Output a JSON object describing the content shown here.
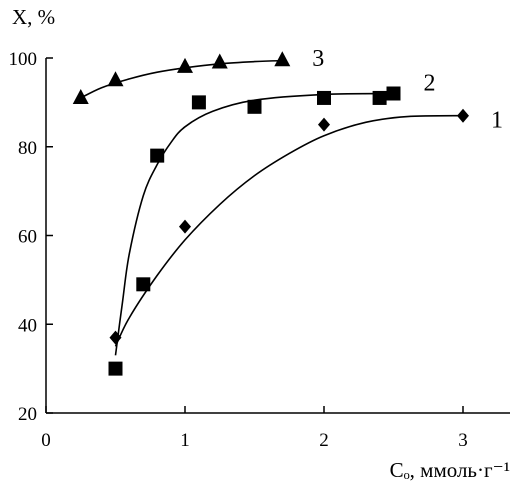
{
  "chart_data": {
    "type": "scatter",
    "ylabel": "X, %",
    "xlabel": "Cₒ, ммоль·г⁻¹",
    "xlim": [
      0,
      3.4
    ],
    "ylim": [
      20,
      100
    ],
    "x_ticks": [
      {
        "value": 0,
        "label": "0"
      },
      {
        "value": 1,
        "label": "1"
      },
      {
        "value": 2,
        "label": "2"
      },
      {
        "value": 3,
        "label": "3"
      }
    ],
    "y_ticks": [
      {
        "value": 20,
        "label": "20"
      },
      {
        "value": 40,
        "label": "40"
      },
      {
        "value": 60,
        "label": "60"
      },
      {
        "value": 80,
        "label": "80"
      },
      {
        "value": 100,
        "label": "100"
      }
    ],
    "grid": false,
    "series": [
      {
        "label": "1",
        "marker": "diamond",
        "x": [
          0.5,
          1.0,
          2.0,
          3.0
        ],
        "y": [
          37,
          62,
          85,
          87
        ],
        "curve": [
          [
            0.5,
            35
          ],
          [
            0.6,
            41.5
          ],
          [
            0.8,
            51
          ],
          [
            1.0,
            59
          ],
          [
            1.25,
            67
          ],
          [
            1.5,
            73.5
          ],
          [
            1.75,
            78.5
          ],
          [
            2.0,
            82.5
          ],
          [
            2.3,
            85.5
          ],
          [
            2.6,
            86.8
          ],
          [
            3.0,
            87
          ]
        ]
      },
      {
        "label": "2",
        "marker": "square",
        "x": [
          0.5,
          0.7,
          0.8,
          1.1,
          1.5,
          2.0,
          2.4,
          2.5
        ],
        "y": [
          30,
          49,
          78,
          90,
          89,
          91,
          91,
          92
        ],
        "curve": [
          [
            0.5,
            33
          ],
          [
            0.55,
            45
          ],
          [
            0.6,
            56
          ],
          [
            0.7,
            69
          ],
          [
            0.8,
            76
          ],
          [
            0.9,
            81
          ],
          [
            1.0,
            84.5
          ],
          [
            1.2,
            88
          ],
          [
            1.5,
            90.5
          ],
          [
            2.0,
            91.8
          ],
          [
            2.5,
            92
          ]
        ]
      },
      {
        "label": "3",
        "marker": "triangle",
        "x": [
          0.25,
          0.5,
          1.0,
          1.25,
          1.7
        ],
        "y": [
          91,
          95,
          98,
          99,
          99.5
        ],
        "curve": [
          [
            0.25,
            91
          ],
          [
            0.4,
            93.3
          ],
          [
            0.6,
            95.3
          ],
          [
            0.8,
            96.8
          ],
          [
            1.0,
            97.8
          ],
          [
            1.25,
            98.7
          ],
          [
            1.5,
            99.2
          ],
          [
            1.7,
            99.4
          ]
        ]
      }
    ]
  }
}
